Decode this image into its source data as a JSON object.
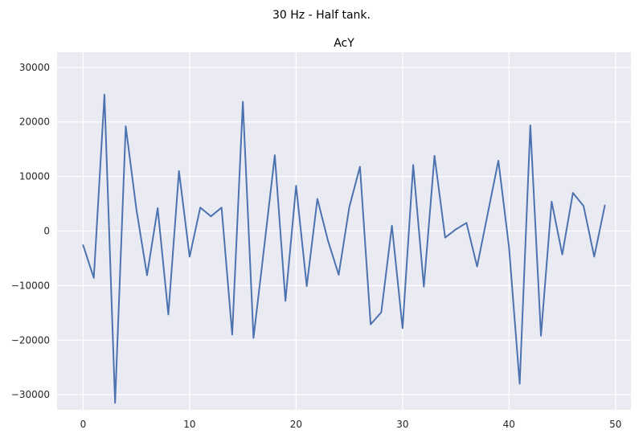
{
  "figure": {
    "suptitle": "30 Hz - Half tank."
  },
  "chart_data": {
    "type": "line",
    "title": "AcY",
    "xlabel": "",
    "ylabel": "",
    "xlim": [
      -2.45,
      51.45
    ],
    "ylim": [
      -32780,
      32780
    ],
    "xticks": [
      0,
      10,
      20,
      30,
      40,
      50
    ],
    "yticks": [
      -30000,
      -20000,
      -10000,
      0,
      10000,
      20000,
      30000
    ],
    "xtick_labels": [
      "0",
      "10",
      "20",
      "30",
      "40",
      "50"
    ],
    "ytick_labels": [
      "−30000",
      "−20000",
      "−10000",
      "0",
      "10000",
      "20000",
      "30000"
    ],
    "grid": true,
    "series": [
      {
        "color": "#4c72b0",
        "x": [
          0,
          1,
          2,
          3,
          4,
          5,
          6,
          7,
          8,
          9,
          10,
          11,
          12,
          13,
          14,
          15,
          16,
          17,
          18,
          19,
          20,
          21,
          22,
          23,
          24,
          25,
          26,
          27,
          28,
          29,
          30,
          31,
          32,
          33,
          34,
          35,
          36,
          37,
          38,
          39,
          40,
          41,
          42,
          43,
          44,
          45,
          46,
          47,
          48,
          49
        ],
        "values": [
          -2600,
          -8600,
          25000,
          -31500,
          19200,
          4000,
          -8100,
          4200,
          -15300,
          11000,
          -4700,
          4300,
          2700,
          4300,
          -19000,
          23700,
          -19600,
          -3000,
          13900,
          -12800,
          8300,
          -10100,
          5900,
          -1800,
          -8000,
          4400,
          11800,
          -17100,
          -14900,
          1000,
          -17800,
          12100,
          -10200,
          13800,
          -1200,
          300,
          1500,
          -6500,
          3200,
          12900,
          -3000,
          -28000,
          19400,
          -19200,
          5400,
          -4300,
          7000,
          4600,
          -4700,
          4700
        ]
      }
    ]
  }
}
